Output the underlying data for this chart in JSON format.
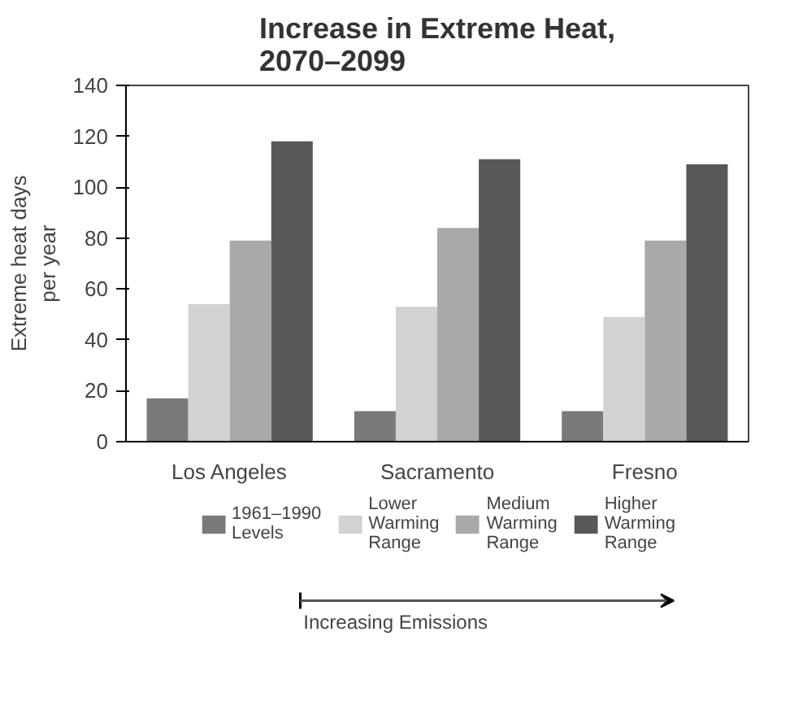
{
  "chart_data": {
    "type": "bar",
    "title": "Increase in Extreme Heat,\n2070–2099",
    "ylabel": "Extreme heat days\nper year",
    "categories": [
      "Los Angeles",
      "Sacramento",
      "Fresno"
    ],
    "series": [
      {
        "name": "1961–1990\nLevels",
        "color": "#7a7a7a",
        "values": [
          17,
          12,
          12
        ]
      },
      {
        "name": "Lower\nWarming\nRange",
        "color": "#d2d2d2",
        "values": [
          54,
          53,
          49
        ]
      },
      {
        "name": "Medium\nWarming\nRange",
        "color": "#a9a9a9",
        "values": [
          79,
          84,
          79
        ]
      },
      {
        "name": "Higher\nWarming\nRange",
        "color": "#585858",
        "values": [
          118,
          111,
          109
        ]
      }
    ],
    "ylim": [
      0,
      140
    ],
    "yticks": [
      0,
      20,
      40,
      60,
      80,
      100,
      120,
      140
    ],
    "grid": false,
    "legend": "bottom",
    "annotations": [
      "Increasing Emissions"
    ]
  }
}
